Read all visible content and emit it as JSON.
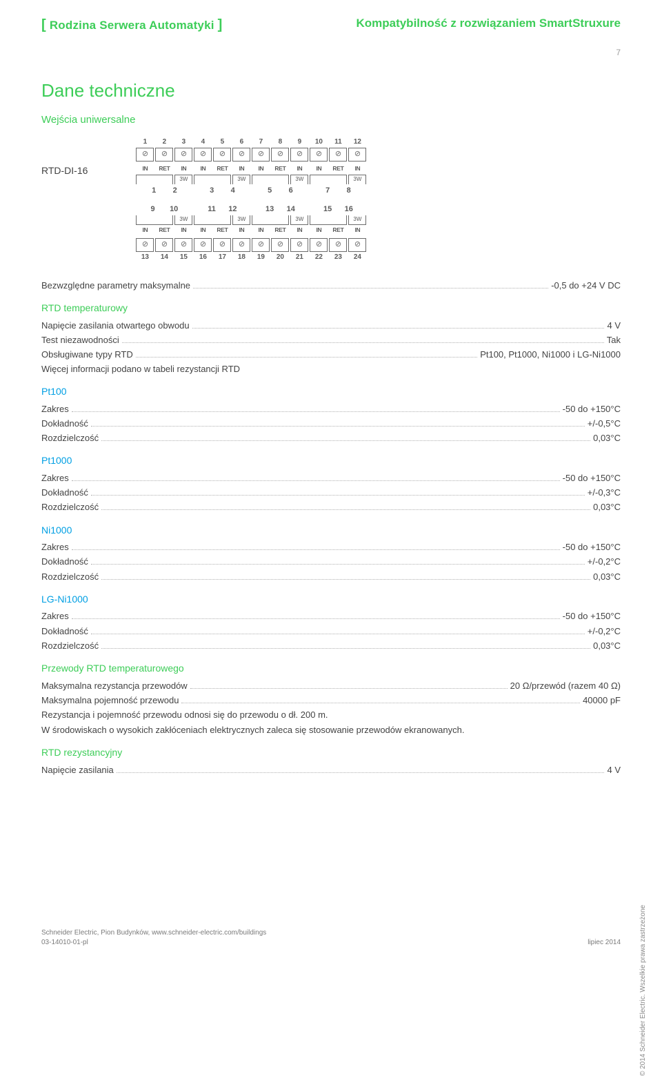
{
  "header": {
    "left_title": "Rodzina Serwera Automatyki",
    "right_title": "Kompatybilność z rozwiązaniem SmartStruxure",
    "page_number": "7"
  },
  "section_title": "Dane techniczne",
  "subsection_title": "Wejścia uniwersalne",
  "device_label": "RTD-DI-16",
  "terminal_diagram": {
    "top": {
      "pin_numbers": [
        "1",
        "2",
        "3",
        "4",
        "5",
        "6",
        "7",
        "8",
        "9",
        "10",
        "11",
        "12"
      ],
      "pin_labels": [
        "IN",
        "RET",
        "IN",
        "IN",
        "RET",
        "IN",
        "IN",
        "RET",
        "IN",
        "IN",
        "RET",
        "IN"
      ],
      "group_labels": [
        "1",
        "2",
        "3",
        "4",
        "5",
        "6",
        "7",
        "8"
      ],
      "sublabel": "3W"
    },
    "bottom": {
      "pin_numbers": [
        "13",
        "14",
        "15",
        "16",
        "17",
        "18",
        "19",
        "20",
        "21",
        "22",
        "23",
        "24"
      ],
      "pin_labels": [
        "IN",
        "RET",
        "IN",
        "IN",
        "RET",
        "IN",
        "IN",
        "RET",
        "IN",
        "IN",
        "RET",
        "IN"
      ],
      "group_labels": [
        "9",
        "10",
        "11",
        "12",
        "13",
        "14",
        "15",
        "16"
      ],
      "sublabel": "3W"
    }
  },
  "absolute_max": {
    "label": "Bezwzględne parametry maksymalne",
    "value": "-0,5 do +24 V DC"
  },
  "rtd_temp_heading": "RTD temperaturowy",
  "rtd_temp_rows": [
    {
      "label": "Napięcie zasilania otwartego obwodu",
      "value": "4 V"
    },
    {
      "label": "Test niezawodności",
      "value": "Tak"
    },
    {
      "label": "Obsługiwane typy RTD",
      "value": "Pt100, Pt1000, Ni1000 i LG-Ni1000"
    }
  ],
  "rtd_temp_note": "Więcej informacji podano w tabeli rezystancji RTD",
  "sensor_blocks": [
    {
      "name": "Pt100",
      "rows": [
        {
          "label": "Zakres",
          "value": "-50 do +150°C"
        },
        {
          "label": "Dokładność",
          "value": "+/-0,5°C"
        },
        {
          "label": "Rozdzielczość",
          "value": "0,03°C"
        }
      ]
    },
    {
      "name": "Pt1000",
      "rows": [
        {
          "label": "Zakres",
          "value": "-50 do +150°C"
        },
        {
          "label": "Dokładność",
          "value": "+/-0,3°C"
        },
        {
          "label": "Rozdzielczość",
          "value": "0,03°C"
        }
      ]
    },
    {
      "name": "Ni1000",
      "rows": [
        {
          "label": "Zakres",
          "value": "-50 do +150°C"
        },
        {
          "label": "Dokładność",
          "value": "+/-0,2°C"
        },
        {
          "label": "Rozdzielczość",
          "value": "0,03°C"
        }
      ]
    },
    {
      "name": "LG-Ni1000",
      "rows": [
        {
          "label": "Zakres",
          "value": "-50 do +150°C"
        },
        {
          "label": "Dokładność",
          "value": "+/-0,2°C"
        },
        {
          "label": "Rozdzielczość",
          "value": "0,03°C"
        }
      ]
    }
  ],
  "rtd_wires_heading": "Przewody RTD temperaturowego",
  "rtd_wires_rows": [
    {
      "label": "Maksymalna rezystancja przewodów",
      "value": "20 Ω/przewód (razem 40 Ω)"
    },
    {
      "label": "Maksymalna pojemność przewodu",
      "value": "40000 pF"
    }
  ],
  "rtd_wires_notes": [
    "Rezystancja i pojemność przewodu odnosi się do przewodu o dł. 200 m.",
    "W środowiskach o wysokich zakłóceniach elektrycznych zaleca się stosowanie przewodów ekranowanych."
  ],
  "rtd_res_heading": "RTD rezystancyjny",
  "rtd_res_rows": [
    {
      "label": "Napięcie zasilania",
      "value": "4 V"
    }
  ],
  "footer": {
    "left_line1": "Schneider Electric, Pion Budynków, www.schneider-electric.com/buildings",
    "left_line2": "03-14010-01-pl",
    "right": "lipiec 2014"
  },
  "side_copyright": "© 2014 Schneider Electric. Wszelkie prawa zastrzeżone",
  "colors": {
    "green": "#3dcd58",
    "blue": "#009fe3",
    "text": "#434343",
    "muted": "#9e9e9e",
    "dot": "#b0b0b0",
    "border": "#6b6b6b"
  }
}
